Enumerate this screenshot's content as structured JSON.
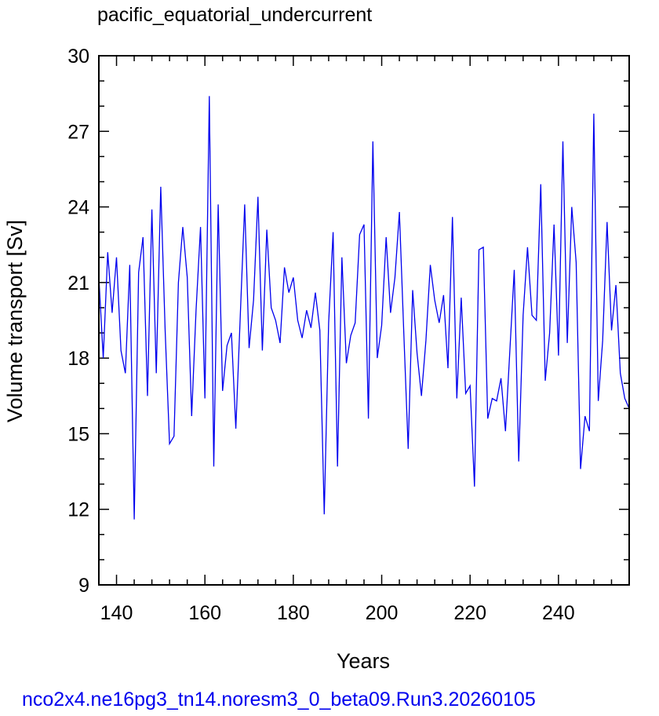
{
  "chart_data": {
    "type": "line",
    "title": "pacific_equatorial_undercurrent",
    "xlabel": "Years",
    "ylabel": "Volume transport [Sv]",
    "footer": "nco2x4.ne16pg3_tn14.noresm3_0_beta09.Run3.20260105",
    "xlim": [
      136,
      256
    ],
    "ylim": [
      9,
      30
    ],
    "xticks": [
      140,
      160,
      180,
      200,
      220,
      240
    ],
    "xtick_labels": [
      "140",
      "160",
      "180",
      "200",
      "220",
      "240"
    ],
    "yticks": [
      9,
      12,
      15,
      18,
      21,
      24,
      27,
      30
    ],
    "ytick_labels": [
      "9",
      "12",
      "15",
      "18",
      "21",
      "24",
      "27",
      "30"
    ],
    "grid": false,
    "colors": {
      "line": "#0000ee",
      "footer": "#0000ee",
      "axes": "#000000"
    },
    "series": [
      {
        "x": [
          136,
          137,
          138,
          139,
          140,
          141,
          142,
          143,
          144,
          145,
          146,
          147,
          148,
          149,
          150,
          151,
          152,
          153,
          154,
          155,
          156,
          157,
          158,
          159,
          160,
          161,
          162,
          163,
          164,
          165,
          166,
          167,
          168,
          169,
          170,
          171,
          172,
          173,
          174,
          175,
          176,
          177,
          178,
          179,
          180,
          181,
          182,
          183,
          184,
          185,
          186,
          187,
          188,
          189,
          190,
          191,
          192,
          193,
          194,
          195,
          196,
          197,
          198,
          199,
          200,
          201,
          202,
          203,
          204,
          205,
          206,
          207,
          208,
          209,
          210,
          211,
          212,
          213,
          214,
          215,
          216,
          217,
          218,
          219,
          220,
          221,
          222,
          223,
          224,
          225,
          226,
          227,
          228,
          229,
          230,
          231,
          232,
          233,
          234,
          235,
          236,
          237,
          238,
          239,
          240,
          241,
          242,
          243,
          244,
          245,
          246,
          247,
          248,
          249,
          250,
          251,
          252,
          253,
          254,
          255,
          256
        ],
        "y": [
          21.2,
          18.0,
          22.2,
          19.8,
          22.0,
          18.3,
          17.4,
          21.7,
          11.6,
          21.4,
          22.8,
          16.5,
          23.9,
          17.4,
          24.8,
          19.1,
          14.6,
          14.9,
          21.0,
          23.2,
          21.2,
          15.7,
          19.9,
          23.2,
          16.4,
          28.4,
          13.7,
          24.1,
          16.7,
          18.5,
          19.0,
          15.2,
          19.7,
          24.1,
          18.4,
          20.3,
          24.4,
          18.3,
          23.1,
          20.0,
          19.5,
          18.6,
          21.6,
          20.6,
          21.2,
          19.5,
          18.8,
          19.9,
          19.2,
          20.6,
          19.1,
          11.8,
          19.4,
          23.0,
          13.7,
          22.0,
          17.8,
          18.9,
          19.4,
          22.9,
          23.3,
          15.6,
          26.6,
          18.0,
          19.3,
          22.8,
          19.8,
          21.2,
          23.8,
          19.0,
          14.4,
          20.7,
          18.2,
          16.5,
          18.7,
          21.7,
          20.3,
          19.4,
          20.5,
          17.6,
          23.6,
          16.4,
          20.4,
          16.6,
          16.9,
          12.9,
          22.3,
          22.4,
          15.6,
          16.4,
          16.3,
          17.2,
          15.1,
          18.3,
          21.5,
          13.9,
          19.7,
          22.4,
          19.7,
          19.5,
          24.9,
          17.1,
          19.0,
          23.3,
          18.1,
          26.6,
          18.6,
          24.0,
          21.8,
          13.6,
          15.7,
          15.1,
          27.7,
          16.3,
          18.7,
          23.4,
          19.1,
          20.9,
          17.4,
          16.4,
          16.0
        ]
      }
    ]
  }
}
